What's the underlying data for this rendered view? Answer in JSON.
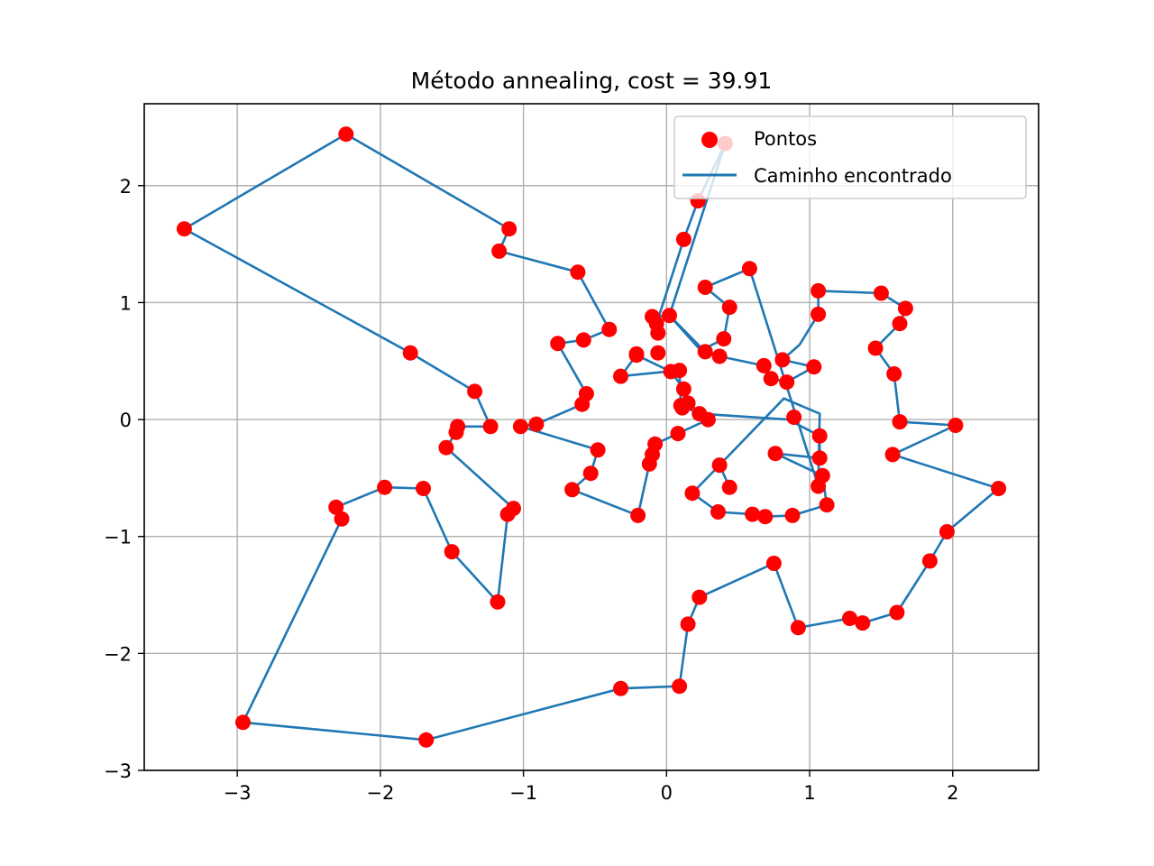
{
  "chart_data": {
    "type": "scatter",
    "title": "Método annealing, cost = 39.91",
    "xlabel": "",
    "ylabel": "",
    "xlim": [
      -3.65,
      2.6
    ],
    "ylim": [
      -3,
      2.7
    ],
    "xticks": [
      -3,
      -2,
      -1,
      0,
      1,
      2
    ],
    "yticks": [
      -3,
      -2,
      -1,
      0,
      1,
      2
    ],
    "xtick_labels": [
      "−3",
      "−2",
      "−1",
      "0",
      "1",
      "2"
    ],
    "ytick_labels": [
      "−3",
      "−2",
      "−1",
      "0",
      "1",
      "2"
    ],
    "grid": true,
    "legend_position": "top-right",
    "colors": {
      "points": "#ff0000",
      "path": "#1f77b4",
      "grid": "#b0b0b0"
    },
    "series": [
      {
        "name": "Pontos",
        "type": "scatter"
      },
      {
        "name": "Caminho encontrado",
        "type": "line"
      }
    ],
    "path": [
      [
        0.41,
        2.36
      ],
      [
        0.22,
        1.87
      ],
      [
        0.12,
        1.54
      ],
      [
        -0.07,
        0.82
      ],
      [
        -0.06,
        0.74
      ],
      [
        -0.1,
        0.88
      ],
      [
        0.02,
        0.89
      ],
      [
        0.27,
        0.58
      ],
      [
        0.37,
        0.54
      ],
      [
        0.68,
        0.46
      ],
      [
        0.73,
        0.35
      ],
      [
        0.84,
        0.32
      ],
      [
        1.03,
        0.45
      ],
      [
        0.81,
        0.51
      ],
      [
        0.93,
        0.64
      ],
      [
        1.06,
        0.9
      ],
      [
        1.06,
        1.1
      ],
      [
        1.5,
        1.08
      ],
      [
        1.67,
        0.95
      ],
      [
        1.63,
        0.82
      ],
      [
        1.46,
        0.61
      ],
      [
        1.59,
        0.39
      ],
      [
        1.63,
        -0.02
      ],
      [
        2.02,
        -0.05
      ],
      [
        1.58,
        -0.3
      ],
      [
        2.32,
        -0.59
      ],
      [
        1.96,
        -0.96
      ],
      [
        1.84,
        -1.21
      ],
      [
        1.61,
        -1.65
      ],
      [
        1.37,
        -1.74
      ],
      [
        1.28,
        -1.7
      ],
      [
        0.92,
        -1.78
      ],
      [
        0.75,
        -1.23
      ],
      [
        0.23,
        -1.52
      ],
      [
        0.15,
        -1.75
      ],
      [
        0.09,
        -2.28
      ],
      [
        -0.32,
        -2.3
      ],
      [
        -1.68,
        -2.74
      ],
      [
        -2.96,
        -2.59
      ],
      [
        -2.27,
        -0.85
      ],
      [
        -2.31,
        -0.75
      ],
      [
        -1.97,
        -0.58
      ],
      [
        -1.7,
        -0.59
      ],
      [
        -1.5,
        -1.13
      ],
      [
        -1.18,
        -1.56
      ],
      [
        -1.11,
        -0.81
      ],
      [
        -1.07,
        -0.76
      ],
      [
        -1.54,
        -0.24
      ],
      [
        -1.47,
        -0.11
      ],
      [
        -1.46,
        -0.06
      ],
      [
        -1.23,
        -0.06
      ],
      [
        -1.34,
        0.24
      ],
      [
        -1.79,
        0.57
      ],
      [
        -3.37,
        1.63
      ],
      [
        -2.24,
        2.44
      ],
      [
        -1.1,
        1.63
      ],
      [
        -1.17,
        1.44
      ],
      [
        -0.62,
        1.26
      ],
      [
        -0.4,
        0.77
      ],
      [
        -0.58,
        0.68
      ],
      [
        -0.76,
        0.65
      ],
      [
        -0.56,
        0.22
      ],
      [
        -0.59,
        0.13
      ],
      [
        -0.91,
        -0.04
      ],
      [
        -1.02,
        -0.06
      ],
      [
        -0.48,
        -0.26
      ],
      [
        -0.53,
        -0.46
      ],
      [
        -0.66,
        -0.6
      ],
      [
        -0.2,
        -0.82
      ],
      [
        -0.12,
        -0.38
      ],
      [
        -0.1,
        -0.3
      ],
      [
        -0.08,
        -0.21
      ],
      [
        0.08,
        -0.12
      ],
      [
        0.29,
        0.0
      ],
      [
        0.15,
        0.14
      ],
      [
        0.12,
        0.26
      ],
      [
        0.03,
        0.41
      ],
      [
        -0.21,
        0.55
      ],
      [
        -0.32,
        0.37
      ],
      [
        0.09,
        0.42
      ],
      [
        0.1,
        0.12
      ],
      [
        0.23,
        0.05
      ],
      [
        0.85,
        0.0
      ],
      [
        1.07,
        -0.14
      ],
      [
        1.07,
        -0.33
      ],
      [
        0.76,
        -0.29
      ],
      [
        1.09,
        -0.48
      ],
      [
        1.12,
        -0.73
      ],
      [
        0.88,
        -0.82
      ],
      [
        0.69,
        -0.83
      ],
      [
        0.6,
        -0.81
      ],
      [
        0.36,
        -0.79
      ],
      [
        0.18,
        -0.63
      ],
      [
        0.37,
        -0.39
      ],
      [
        0.44,
        -0.58
      ],
      [
        0.37,
        -0.39
      ],
      [
        0.82,
        0.18
      ],
      [
        1.07,
        0.05
      ],
      [
        1.06,
        -0.57
      ],
      [
        0.58,
        1.29
      ],
      [
        0.27,
        1.13
      ],
      [
        0.44,
        0.96
      ],
      [
        0.4,
        0.69
      ],
      [
        0.24,
        0.59
      ],
      [
        0.02,
        0.89
      ],
      [
        0.41,
        2.36
      ]
    ],
    "points": [
      [
        0.41,
        2.36
      ],
      [
        0.22,
        1.87
      ],
      [
        0.12,
        1.54
      ],
      [
        -0.07,
        0.82
      ],
      [
        -0.06,
        0.74
      ],
      [
        -0.1,
        0.88
      ],
      [
        0.02,
        0.89
      ],
      [
        0.27,
        0.58
      ],
      [
        0.37,
        0.54
      ],
      [
        0.68,
        0.46
      ],
      [
        0.73,
        0.35
      ],
      [
        0.84,
        0.32
      ],
      [
        1.03,
        0.45
      ],
      [
        0.81,
        0.51
      ],
      [
        1.06,
        0.9
      ],
      [
        1.06,
        1.1
      ],
      [
        1.5,
        1.08
      ],
      [
        1.67,
        0.95
      ],
      [
        1.63,
        0.82
      ],
      [
        1.46,
        0.61
      ],
      [
        1.59,
        0.39
      ],
      [
        1.63,
        -0.02
      ],
      [
        2.02,
        -0.05
      ],
      [
        1.58,
        -0.3
      ],
      [
        2.32,
        -0.59
      ],
      [
        1.96,
        -0.96
      ],
      [
        1.84,
        -1.21
      ],
      [
        1.61,
        -1.65
      ],
      [
        1.37,
        -1.74
      ],
      [
        1.28,
        -1.7
      ],
      [
        0.92,
        -1.78
      ],
      [
        0.75,
        -1.23
      ],
      [
        0.23,
        -1.52
      ],
      [
        0.15,
        -1.75
      ],
      [
        0.09,
        -2.28
      ],
      [
        -0.32,
        -2.3
      ],
      [
        -1.68,
        -2.74
      ],
      [
        -2.96,
        -2.59
      ],
      [
        -2.27,
        -0.85
      ],
      [
        -2.31,
        -0.75
      ],
      [
        -1.97,
        -0.58
      ],
      [
        -1.7,
        -0.59
      ],
      [
        -1.5,
        -1.13
      ],
      [
        -1.18,
        -1.56
      ],
      [
        -1.11,
        -0.81
      ],
      [
        -1.07,
        -0.76
      ],
      [
        -1.54,
        -0.24
      ],
      [
        -1.47,
        -0.11
      ],
      [
        -1.46,
        -0.06
      ],
      [
        -1.23,
        -0.06
      ],
      [
        -1.34,
        0.24
      ],
      [
        -1.79,
        0.57
      ],
      [
        -3.37,
        1.63
      ],
      [
        -2.24,
        2.44
      ],
      [
        -1.1,
        1.63
      ],
      [
        -1.17,
        1.44
      ],
      [
        -0.62,
        1.26
      ],
      [
        -0.4,
        0.77
      ],
      [
        -0.58,
        0.68
      ],
      [
        -0.76,
        0.65
      ],
      [
        -0.56,
        0.22
      ],
      [
        -0.59,
        0.13
      ],
      [
        -0.91,
        -0.04
      ],
      [
        -1.02,
        -0.06
      ],
      [
        -0.48,
        -0.26
      ],
      [
        -0.53,
        -0.46
      ],
      [
        -0.66,
        -0.6
      ],
      [
        -0.2,
        -0.82
      ],
      [
        -0.12,
        -0.38
      ],
      [
        -0.1,
        -0.3
      ],
      [
        -0.08,
        -0.21
      ],
      [
        0.08,
        -0.12
      ],
      [
        0.29,
        0.0
      ],
      [
        0.15,
        0.14
      ],
      [
        0.12,
        0.26
      ],
      [
        0.03,
        0.41
      ],
      [
        -0.21,
        0.55
      ],
      [
        -0.32,
        0.37
      ],
      [
        0.09,
        0.42
      ],
      [
        0.1,
        0.12
      ],
      [
        0.23,
        0.05
      ],
      [
        0.89,
        0.02
      ],
      [
        1.07,
        -0.14
      ],
      [
        1.07,
        -0.33
      ],
      [
        0.76,
        -0.29
      ],
      [
        1.09,
        -0.48
      ],
      [
        1.12,
        -0.73
      ],
      [
        0.88,
        -0.82
      ],
      [
        0.69,
        -0.83
      ],
      [
        0.6,
        -0.81
      ],
      [
        0.36,
        -0.79
      ],
      [
        0.18,
        -0.63
      ],
      [
        0.37,
        -0.39
      ],
      [
        0.44,
        -0.58
      ],
      [
        1.06,
        -0.57
      ],
      [
        0.58,
        1.29
      ],
      [
        0.27,
        1.13
      ],
      [
        0.44,
        0.96
      ],
      [
        0.4,
        0.69
      ],
      [
        -0.21,
        0.56
      ],
      [
        -0.06,
        0.57
      ],
      [
        0.11,
        0.1
      ]
    ]
  }
}
